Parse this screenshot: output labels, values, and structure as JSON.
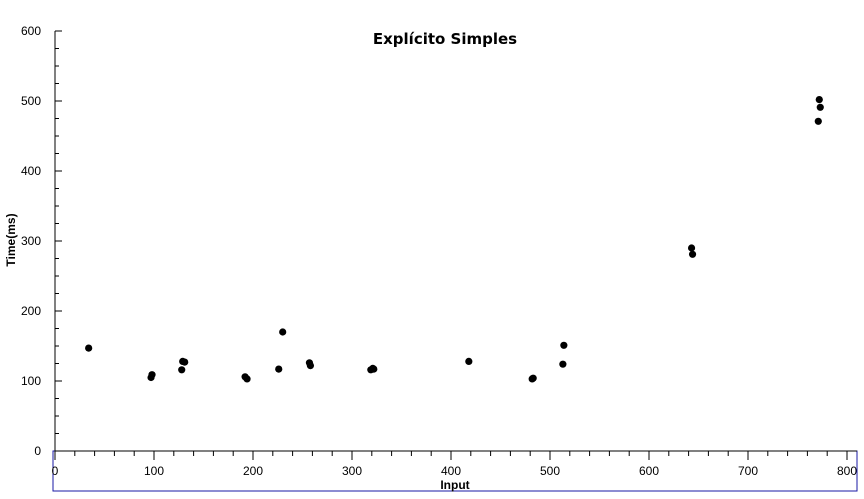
{
  "chart_data": {
    "type": "scatter",
    "title": "Explícito Simples",
    "xlabel": "Input",
    "ylabel": "Time(ms)",
    "xlim": [
      0,
      800
    ],
    "ylim": [
      0,
      600
    ],
    "xticks": [
      0,
      100,
      200,
      300,
      400,
      500,
      600,
      700,
      800
    ],
    "yticks": [
      0,
      100,
      200,
      300,
      400,
      500,
      600
    ],
    "grid": false,
    "point_color": "#000000",
    "axis_color": "#000000",
    "frame_color": "#1a1aa6",
    "points": [
      {
        "x": 34,
        "y": 147
      },
      {
        "x": 97,
        "y": 105
      },
      {
        "x": 98,
        "y": 109
      },
      {
        "x": 128,
        "y": 116
      },
      {
        "x": 129,
        "y": 128
      },
      {
        "x": 131,
        "y": 127
      },
      {
        "x": 192,
        "y": 106
      },
      {
        "x": 194,
        "y": 103
      },
      {
        "x": 226,
        "y": 117
      },
      {
        "x": 230,
        "y": 170
      },
      {
        "x": 257,
        "y": 126
      },
      {
        "x": 258,
        "y": 122
      },
      {
        "x": 319,
        "y": 116
      },
      {
        "x": 321,
        "y": 118
      },
      {
        "x": 322,
        "y": 117
      },
      {
        "x": 418,
        "y": 128
      },
      {
        "x": 482,
        "y": 103
      },
      {
        "x": 483,
        "y": 104
      },
      {
        "x": 513,
        "y": 124
      },
      {
        "x": 514,
        "y": 151
      },
      {
        "x": 643,
        "y": 290
      },
      {
        "x": 644,
        "y": 281
      },
      {
        "x": 771,
        "y": 471
      },
      {
        "x": 772,
        "y": 502
      },
      {
        "x": 773,
        "y": 491
      }
    ]
  }
}
